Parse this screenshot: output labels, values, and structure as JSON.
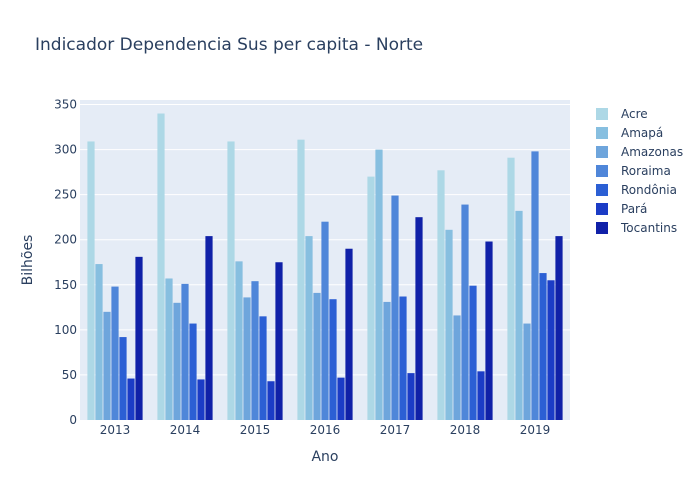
{
  "chart_data": {
    "type": "bar",
    "title": "Indicador Dependencia Sus per capita - Norte",
    "xlabel": "Ano",
    "ylabel": "Bilhões",
    "categories": [
      "2013",
      "2014",
      "2015",
      "2016",
      "2017",
      "2018",
      "2019"
    ],
    "ylim": [
      0,
      355
    ],
    "yticks": [
      0,
      50,
      100,
      150,
      200,
      250,
      300,
      350
    ],
    "grid": true,
    "legend_position": "right",
    "plot_background": "#e5ecf6",
    "series": [
      {
        "name": "Acre",
        "color": "#add8e6",
        "values": [
          309,
          340,
          309,
          311,
          270,
          277,
          291
        ]
      },
      {
        "name": "Amapá",
        "color": "#87bfe0",
        "values": [
          173,
          157,
          176,
          204,
          300,
          211,
          232
        ]
      },
      {
        "name": "Amazonas",
        "color": "#6ea5dc",
        "values": [
          120,
          130,
          136,
          141,
          131,
          116,
          107
        ]
      },
      {
        "name": "Roraima",
        "color": "#4f86d9",
        "values": [
          148,
          151,
          154,
          220,
          249,
          239,
          298
        ]
      },
      {
        "name": "Rondônia",
        "color": "#2b5fd4",
        "values": [
          92,
          107,
          115,
          134,
          137,
          149,
          163
        ]
      },
      {
        "name": "Pará",
        "color": "#1b3cc6",
        "values": [
          46,
          45,
          43,
          47,
          52,
          54,
          155
        ]
      },
      {
        "name": "Tocantins",
        "color": "#1021a8",
        "values": [
          181,
          204,
          175,
          190,
          225,
          198,
          204
        ]
      }
    ]
  }
}
